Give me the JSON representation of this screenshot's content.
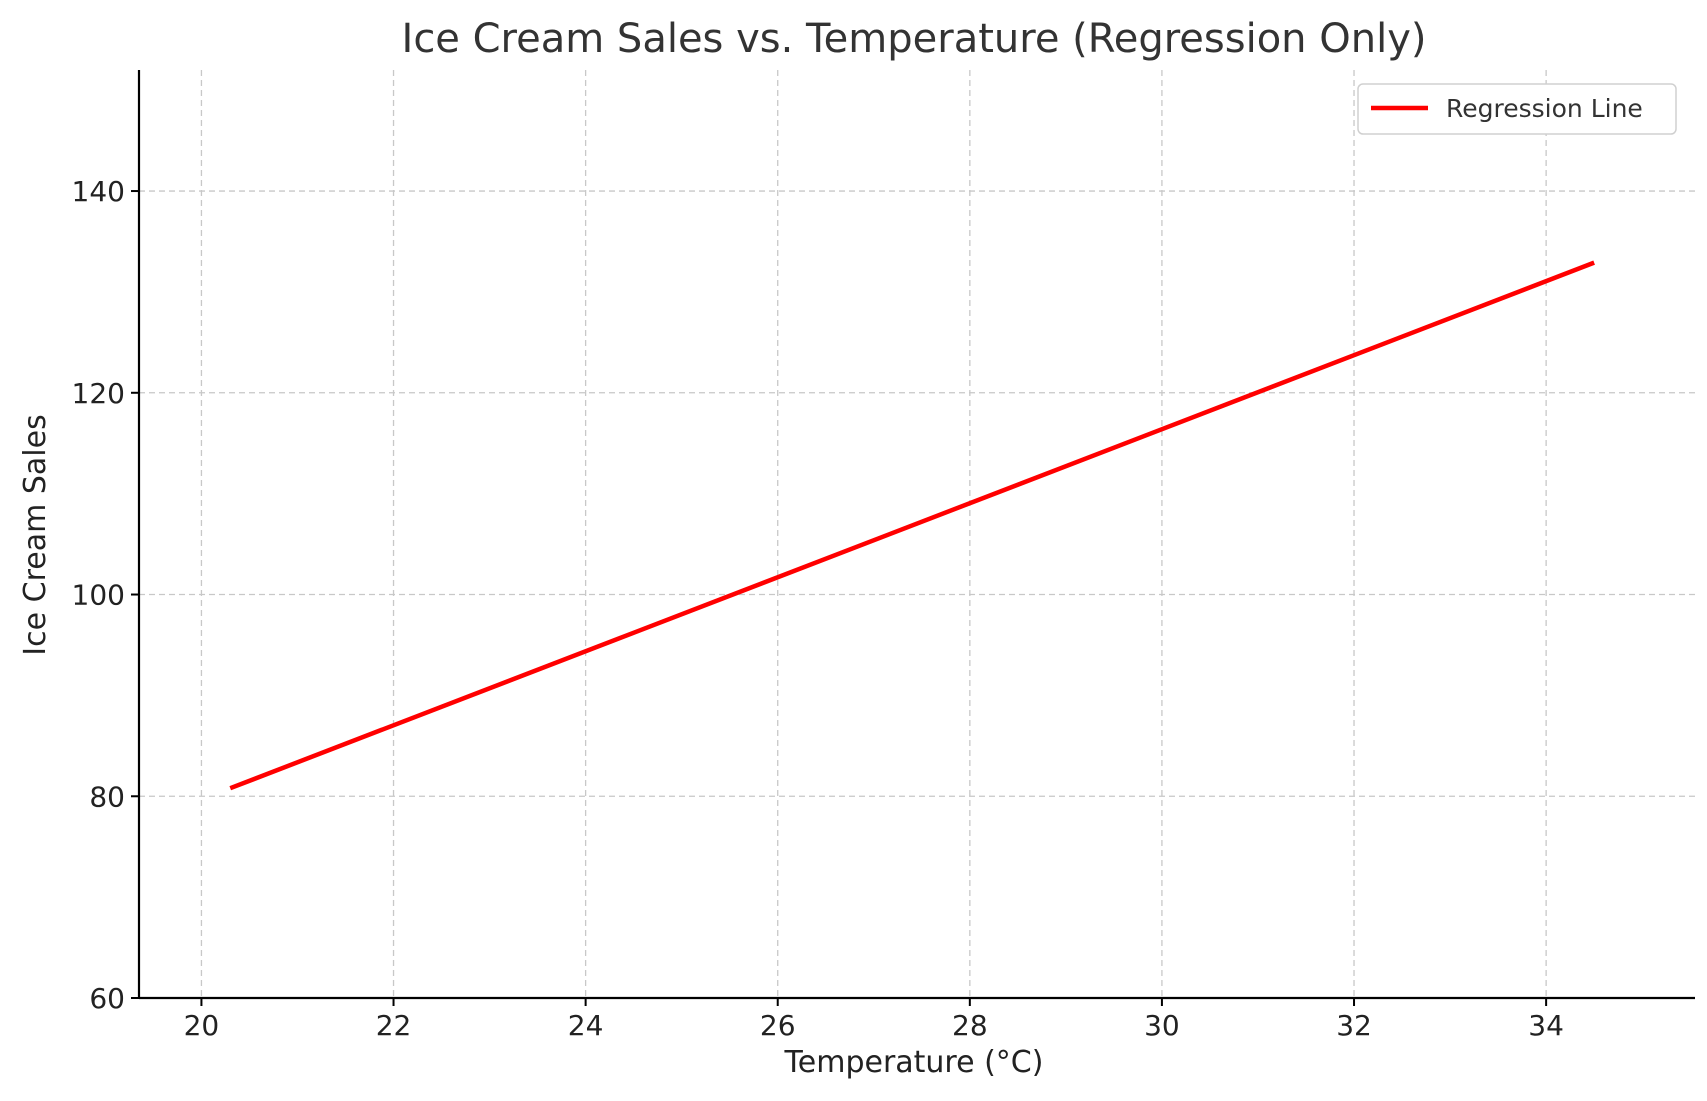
{
  "chart_data": {
    "type": "line",
    "title": "Ice Cream Sales vs. Temperature (Regression Only)",
    "xlabel": "Temperature (°C)",
    "ylabel": "Ice Cream Sales",
    "xlim": [
      19.35,
      35.55
    ],
    "ylim": [
      60,
      152
    ],
    "xticks": [
      20,
      22,
      24,
      26,
      28,
      30,
      32,
      34
    ],
    "yticks": [
      60,
      80,
      100,
      120,
      140
    ],
    "grid": true,
    "legend_position": "top-right",
    "series": [
      {
        "name": "Regression Line",
        "color": "#ff0000",
        "x": [
          20.3,
          34.5
        ],
        "y": [
          80.8,
          132.9
        ]
      }
    ]
  }
}
